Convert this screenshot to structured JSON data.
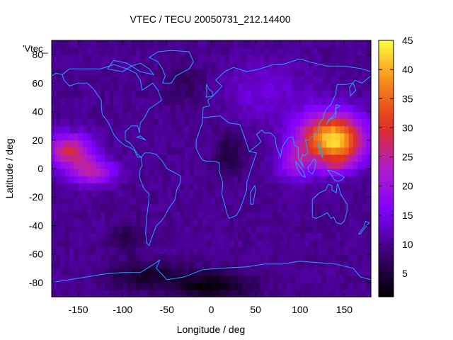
{
  "chart_data": {
    "type": "heatmap",
    "title": "VTEC / TECU 20050731_212.14400",
    "xlabel": "Longitude / deg",
    "ylabel": "Latitude / deg",
    "xlim": [
      -180,
      180
    ],
    "ylim": [
      -90,
      90
    ],
    "x_ticks": [
      -150,
      -100,
      -50,
      0,
      50,
      100,
      150
    ],
    "y_ticks": [
      -80,
      -60,
      -40,
      -20,
      0,
      20,
      40,
      60,
      80
    ],
    "colorbar": {
      "min": 1,
      "max": 45,
      "ticks": [
        5,
        10,
        15,
        20,
        25,
        30,
        35,
        40,
        45
      ]
    },
    "key_label": "'Vtec_",
    "grid": false,
    "colors": {
      "coastline": "#1ea6ff",
      "palette": [
        "#000000",
        "#3a0070",
        "#7f00ff",
        "#b11cc8",
        "#e2301e",
        "#f6861a",
        "#ffff3c"
      ]
    },
    "cells": {
      "lon_step": 5,
      "lat_step": 5,
      "lon_start": -180,
      "lat_start": -90,
      "background": 10
    },
    "features": [
      {
        "lon": 135,
        "lat": 22,
        "slon": 35,
        "slat": 17,
        "amp": 31
      },
      {
        "lon": 140,
        "lat": 2,
        "slon": 15,
        "slat": 6,
        "amp": 6
      },
      {
        "lon": 150,
        "lat": 12,
        "slon": 25,
        "slat": 12,
        "amp": 6
      },
      {
        "lon": 95,
        "lat": 5,
        "slon": 20,
        "slat": 12,
        "amp": 10
      },
      {
        "lon": -160,
        "lat": 13,
        "slon": 25,
        "slat": 11,
        "amp": 18
      },
      {
        "lon": -135,
        "lat": -2,
        "slon": 25,
        "slat": 9,
        "amp": 14
      },
      {
        "lon": 0,
        "lat": -82,
        "slon": 45,
        "slat": 10,
        "amp": -8
      },
      {
        "lon": -75,
        "lat": -75,
        "slon": 40,
        "slat": 10,
        "amp": -6
      },
      {
        "lon": -95,
        "lat": -48,
        "slon": 18,
        "slat": 10,
        "amp": -4
      },
      {
        "lon": 20,
        "lat": 10,
        "slon": 15,
        "slat": 15,
        "amp": -5
      },
      {
        "lon": -30,
        "lat": 60,
        "slon": 25,
        "slat": 15,
        "amp": -3
      },
      {
        "lon": 60,
        "lat": 55,
        "slon": 50,
        "slat": 20,
        "amp": 4
      }
    ],
    "coastlines": [
      [
        [
          -168,
          66
        ],
        [
          -160,
          70
        ],
        [
          -140,
          70
        ],
        [
          -125,
          70
        ],
        [
          -110,
          73
        ],
        [
          -95,
          70
        ],
        [
          -85,
          67
        ],
        [
          -80,
          62
        ],
        [
          -78,
          55
        ],
        [
          -66,
          60
        ],
        [
          -60,
          55
        ],
        [
          -56,
          48
        ],
        [
          -65,
          44
        ],
        [
          -70,
          42
        ],
        [
          -75,
          36
        ],
        [
          -80,
          32
        ],
        [
          -81,
          25
        ],
        [
          -83,
          30
        ],
        [
          -90,
          30
        ],
        [
          -97,
          26
        ],
        [
          -97,
          20
        ],
        [
          -92,
          18
        ],
        [
          -88,
          15
        ],
        [
          -83,
          10
        ],
        [
          -79,
          8
        ],
        [
          -83,
          8
        ],
        [
          -87,
          13
        ],
        [
          -92,
          15
        ],
        [
          -97,
          16
        ],
        [
          -105,
          20
        ],
        [
          -110,
          24
        ],
        [
          -115,
          31
        ],
        [
          -118,
          34
        ],
        [
          -123,
          38
        ],
        [
          -124,
          43
        ],
        [
          -124,
          48
        ],
        [
          -133,
          56
        ],
        [
          -140,
          60
        ],
        [
          -150,
          60
        ],
        [
          -160,
          58
        ],
        [
          -166,
          62
        ],
        [
          -168,
          66
        ]
      ],
      [
        [
          -79,
          8
        ],
        [
          -75,
          11
        ],
        [
          -68,
          11
        ],
        [
          -62,
          10
        ],
        [
          -55,
          5
        ],
        [
          -50,
          0
        ],
        [
          -44,
          -2
        ],
        [
          -35,
          -5
        ],
        [
          -35,
          -10
        ],
        [
          -39,
          -15
        ],
        [
          -41,
          -22
        ],
        [
          -48,
          -28
        ],
        [
          -53,
          -34
        ],
        [
          -58,
          -38
        ],
        [
          -62,
          -40
        ],
        [
          -65,
          -45
        ],
        [
          -68,
          -50
        ],
        [
          -70,
          -54
        ],
        [
          -73,
          -52
        ],
        [
          -74,
          -45
        ],
        [
          -73,
          -35
        ],
        [
          -71,
          -25
        ],
        [
          -70,
          -18
        ],
        [
          -76,
          -14
        ],
        [
          -81,
          -6
        ],
        [
          -80,
          0
        ],
        [
          -78,
          2
        ],
        [
          -79,
          8
        ]
      ],
      [
        [
          -10,
          36
        ],
        [
          -5,
          36
        ],
        [
          10,
          37
        ],
        [
          20,
          32
        ],
        [
          32,
          31
        ],
        [
          34,
          28
        ],
        [
          43,
          12
        ],
        [
          51,
          11
        ],
        [
          45,
          0
        ],
        [
          40,
          -10
        ],
        [
          40,
          -15
        ],
        [
          35,
          -24
        ],
        [
          32,
          -29
        ],
        [
          28,
          -33
        ],
        [
          20,
          -35
        ],
        [
          18,
          -32
        ],
        [
          12,
          -18
        ],
        [
          13,
          -10
        ],
        [
          9,
          -2
        ],
        [
          9,
          4
        ],
        [
          5,
          5
        ],
        [
          -5,
          5
        ],
        [
          -10,
          6
        ],
        [
          -13,
          9
        ],
        [
          -17,
          14
        ],
        [
          -17,
          20
        ],
        [
          -13,
          27
        ],
        [
          -10,
          32
        ],
        [
          -10,
          36
        ]
      ],
      [
        [
          -10,
          36
        ],
        [
          -9,
          43
        ],
        [
          -2,
          44
        ],
        [
          -4,
          48
        ],
        [
          2,
          51
        ],
        [
          5,
          53
        ],
        [
          8,
          55
        ],
        [
          12,
          58
        ],
        [
          5,
          62
        ],
        [
          15,
          68
        ],
        [
          25,
          71
        ],
        [
          40,
          68
        ],
        [
          55,
          70
        ],
        [
          70,
          73
        ],
        [
          80,
          73
        ],
        [
          100,
          77
        ],
        [
          110,
          75
        ],
        [
          130,
          72
        ],
        [
          150,
          72
        ],
        [
          170,
          70
        ],
        [
          180,
          68
        ]
      ],
      [
        [
          -180,
          65
        ],
        [
          -175,
          67
        ],
        [
          -168,
          66
        ]
      ],
      [
        [
          140,
          52
        ],
        [
          135,
          45
        ],
        [
          130,
          42
        ],
        [
          127,
          38
        ],
        [
          126,
          35
        ],
        [
          122,
          32
        ],
        [
          121,
          28
        ],
        [
          118,
          25
        ],
        [
          110,
          20
        ],
        [
          106,
          20
        ],
        [
          108,
          15
        ],
        [
          109,
          11
        ],
        [
          105,
          9
        ],
        [
          103,
          10
        ],
        [
          101,
          6
        ],
        [
          104,
          1
        ],
        [
          100,
          5
        ],
        [
          98,
          8
        ],
        [
          98,
          15
        ],
        [
          94,
          16
        ],
        [
          92,
          22
        ],
        [
          88,
          22
        ],
        [
          85,
          20
        ],
        [
          80,
          15
        ],
        [
          78,
          8
        ],
        [
          73,
          16
        ],
        [
          72,
          22
        ],
        [
          67,
          25
        ],
        [
          60,
          25
        ],
        [
          57,
          27
        ],
        [
          51,
          24
        ],
        [
          56,
          19
        ],
        [
          53,
          17
        ],
        [
          45,
          13
        ],
        [
          43,
          12
        ]
      ],
      [
        [
          140,
          52
        ],
        [
          142,
          59
        ],
        [
          152,
          59
        ],
        [
          160,
          60
        ],
        [
          163,
          55
        ],
        [
          157,
          51
        ],
        [
          156,
          57
        ],
        [
          162,
          62
        ],
        [
          170,
          60
        ],
        [
          180,
          65
        ]
      ],
      [
        [
          114,
          -22
        ],
        [
          114,
          -34
        ],
        [
          118,
          -35
        ],
        [
          125,
          -33
        ],
        [
          131,
          -31
        ],
        [
          135,
          -35
        ],
        [
          138,
          -34
        ],
        [
          141,
          -38
        ],
        [
          146,
          -39
        ],
        [
          150,
          -37
        ],
        [
          153,
          -30
        ],
        [
          153,
          -25
        ],
        [
          146,
          -18
        ],
        [
          143,
          -11
        ],
        [
          142,
          -11
        ],
        [
          141,
          -17
        ],
        [
          136,
          -15
        ],
        [
          136,
          -12
        ],
        [
          132,
          -11
        ],
        [
          129,
          -15
        ],
        [
          122,
          -17
        ],
        [
          115,
          -21
        ],
        [
          114,
          -22
        ]
      ],
      [
        [
          -180,
          -80
        ],
        [
          -160,
          -78
        ],
        [
          -140,
          -76
        ],
        [
          -120,
          -74
        ],
        [
          -100,
          -73
        ],
        [
          -80,
          -73
        ],
        [
          -62,
          -66
        ],
        [
          -58,
          -64
        ],
        [
          -62,
          -70
        ],
        [
          -50,
          -78
        ],
        [
          -30,
          -76
        ],
        [
          -10,
          -71
        ],
        [
          10,
          -70
        ],
        [
          40,
          -69
        ],
        [
          60,
          -67
        ],
        [
          80,
          -67
        ],
        [
          100,
          -65
        ],
        [
          120,
          -66
        ],
        [
          140,
          -67
        ],
        [
          160,
          -70
        ],
        [
          168,
          -76
        ],
        [
          180,
          -78
        ]
      ],
      [
        [
          -55,
          60
        ],
        [
          -45,
          60
        ],
        [
          -40,
          65
        ],
        [
          -25,
          70
        ],
        [
          -20,
          75
        ],
        [
          -25,
          82
        ],
        [
          -45,
          83
        ],
        [
          -60,
          82
        ],
        [
          -70,
          78
        ],
        [
          -60,
          75
        ],
        [
          -55,
          70
        ],
        [
          -52,
          65
        ],
        [
          -55,
          60
        ]
      ],
      [
        [
          -6,
          50
        ],
        [
          2,
          51
        ],
        [
          1,
          54
        ],
        [
          -3,
          56
        ],
        [
          -5,
          59
        ],
        [
          -6,
          57
        ],
        [
          -5,
          54
        ],
        [
          -5,
          52
        ],
        [
          -6,
          50
        ]
      ],
      [
        [
          130,
          31
        ],
        [
          133,
          34
        ],
        [
          136,
          35
        ],
        [
          140,
          36
        ],
        [
          141,
          40
        ],
        [
          140,
          42
        ],
        [
          143,
          43
        ],
        [
          145,
          44
        ],
        [
          141,
          45
        ],
        [
          140,
          39
        ],
        [
          136,
          36
        ],
        [
          132,
          34
        ],
        [
          130,
          31
        ]
      ],
      [
        [
          95,
          5
        ],
        [
          98,
          3
        ],
        [
          104,
          -2
        ],
        [
          106,
          -6
        ],
        [
          102,
          -5
        ],
        [
          97,
          0
        ],
        [
          95,
          5
        ]
      ],
      [
        [
          109,
          1
        ],
        [
          110,
          -2
        ],
        [
          114,
          -4
        ],
        [
          117,
          0
        ],
        [
          118,
          5
        ],
        [
          116,
          7
        ],
        [
          112,
          3
        ],
        [
          109,
          1
        ]
      ],
      [
        [
          131,
          -1
        ],
        [
          138,
          -2
        ],
        [
          144,
          -4
        ],
        [
          150,
          -6
        ],
        [
          147,
          -8
        ],
        [
          143,
          -9
        ],
        [
          139,
          -8
        ],
        [
          135,
          -4
        ],
        [
          131,
          -1
        ]
      ],
      [
        [
          44,
          -25
        ],
        [
          47,
          -25
        ],
        [
          50,
          -15
        ],
        [
          49,
          -12
        ],
        [
          44,
          -17
        ],
        [
          44,
          -25
        ]
      ],
      [
        [
          166,
          -46
        ],
        [
          172,
          -41
        ],
        [
          174,
          -37
        ],
        [
          178,
          -38
        ],
        [
          174,
          -41
        ],
        [
          168,
          -46
        ],
        [
          166,
          -46
        ]
      ],
      [
        [
          -80,
          23
        ],
        [
          -74,
          20
        ],
        [
          -78,
          21
        ],
        [
          -84,
          22
        ],
        [
          -80,
          23
        ]
      ],
      [
        [
          120,
          18
        ],
        [
          122,
          13
        ],
        [
          125,
          8
        ],
        [
          126,
          10
        ],
        [
          124,
          13
        ],
        [
          122,
          18
        ],
        [
          120,
          18
        ]
      ],
      [
        [
          -117,
          70
        ],
        [
          -100,
          68
        ],
        [
          -90,
          72
        ],
        [
          -80,
          74
        ],
        [
          -70,
          70
        ],
        [
          -65,
          66
        ],
        [
          -80,
          68
        ],
        [
          -95,
          74
        ],
        [
          -110,
          76
        ],
        [
          -117,
          70
        ]
      ]
    ]
  }
}
